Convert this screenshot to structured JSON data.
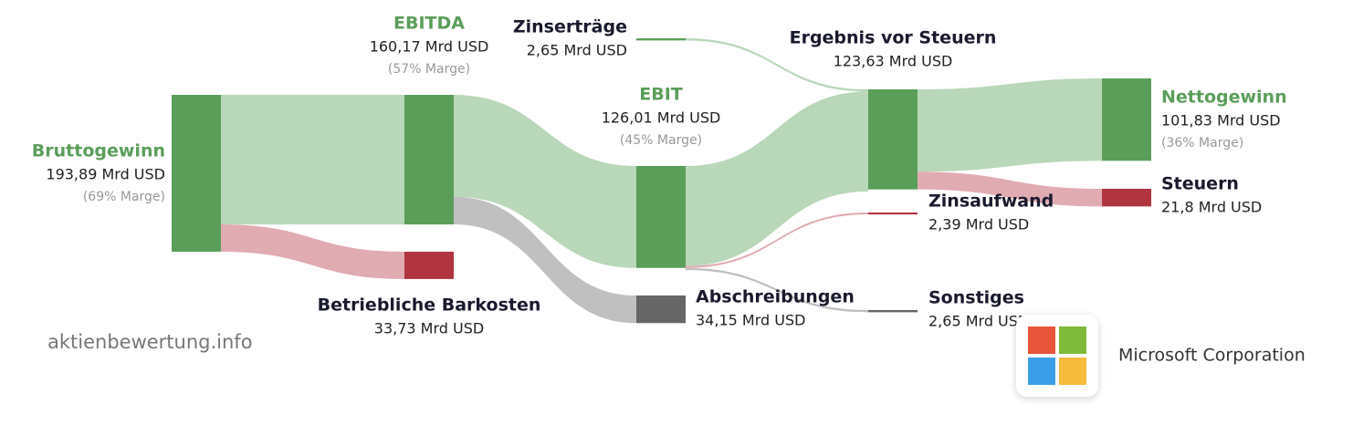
{
  "chart_data": {
    "type": "sankey",
    "watermark": "aktienbewertung.info",
    "company": "Microsoft Corporation",
    "nodes": [
      {
        "name": "Bruttogewinn",
        "value": 193.89,
        "value_label": "193,89 Mrd USD",
        "margin_label": "(69% Marge)",
        "color": "#5a9e5a",
        "name_color": "#5a9e5a"
      },
      {
        "name": "EBITDA",
        "value": 160.17,
        "value_label": "160,17 Mrd USD",
        "margin_label": "(57% Marge)",
        "color": "#5a9e5a",
        "name_color": "#5a9e5a"
      },
      {
        "name": "Betriebliche Barkosten",
        "value": 33.73,
        "value_label": "33,73 Mrd USD",
        "color": "#b03540",
        "name_color": "#1a1a2e"
      },
      {
        "name": "EBIT",
        "value": 126.01,
        "value_label": "126,01 Mrd USD",
        "margin_label": "(45% Marge)",
        "color": "#5a9e5a",
        "name_color": "#5a9e5a"
      },
      {
        "name": "Abschreibungen",
        "value": 34.15,
        "value_label": "34,15 Mrd USD",
        "color": "#666666",
        "name_color": "#1a1a2e"
      },
      {
        "name": "Zinserträge",
        "value": 2.65,
        "value_label": "2,65 Mrd USD",
        "color": "#5a9e5a",
        "name_color": "#1a1a2e"
      },
      {
        "name": "Ergebnis vor Steuern",
        "value": 123.63,
        "value_label": "123,63 Mrd USD",
        "color": "#5a9e5a",
        "name_color": "#1a1a2e"
      },
      {
        "name": "Zinsaufwand",
        "value": 2.39,
        "value_label": "2,39 Mrd USD",
        "color": "#b03540",
        "name_color": "#1a1a2e"
      },
      {
        "name": "Sonstiges",
        "value": 2.65,
        "value_label": "2,65 Mrd USD",
        "color": "#666666",
        "name_color": "#1a1a2e"
      },
      {
        "name": "Nettogewinn",
        "value": 101.83,
        "value_label": "101,83 Mrd USD",
        "margin_label": "(36% Marge)",
        "color": "#5a9e5a",
        "name_color": "#5a9e5a"
      },
      {
        "name": "Steuern",
        "value": 21.8,
        "value_label": "21,8 Mrd USD",
        "color": "#b03540",
        "name_color": "#1a1a2e"
      }
    ],
    "links": [
      {
        "source": "Bruttogewinn",
        "target": "EBITDA",
        "value": 160.17,
        "color": "#b5d5b5"
      },
      {
        "source": "Bruttogewinn",
        "target": "Betriebliche Barkosten",
        "value": 33.73,
        "color": "#dfa6ae"
      },
      {
        "source": "EBITDA",
        "target": "EBIT",
        "value": 126.01,
        "color": "#b5d5b5"
      },
      {
        "source": "EBITDA",
        "target": "Abschreibungen",
        "value": 34.15,
        "color": "#bdbdbd"
      },
      {
        "source": "Zinserträge",
        "target": "Ergebnis vor Steuern",
        "value": 2.65,
        "color": "#b5d5b5"
      },
      {
        "source": "EBIT",
        "target": "Ergebnis vor Steuern",
        "value": 123.63,
        "color": "#b5d5b5"
      },
      {
        "source": "EBIT",
        "target": "Zinsaufwand",
        "value": 2.39,
        "color": "#dfa6ae"
      },
      {
        "source": "EBIT",
        "target": "Sonstiges",
        "value": 2.65,
        "color": "#bdbdbd"
      },
      {
        "source": "Ergebnis vor Steuern",
        "target": "Nettogewinn",
        "value": 101.83,
        "color": "#b5d5b5"
      },
      {
        "source": "Ergebnis vor Steuern",
        "target": "Steuern",
        "value": 21.8,
        "color": "#dfa6ae"
      }
    ]
  }
}
